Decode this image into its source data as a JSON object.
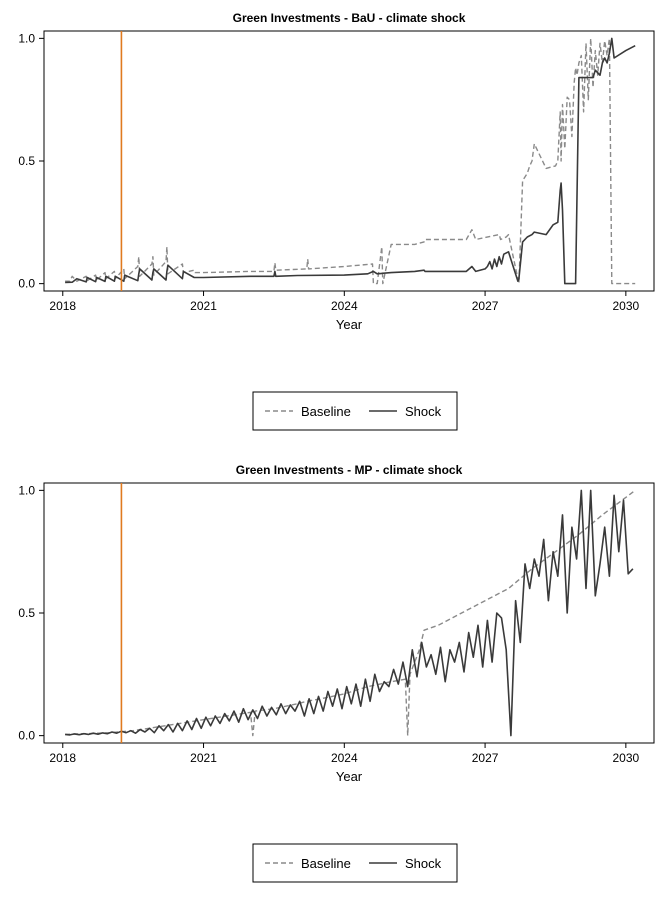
{
  "colors": {
    "baseline": "#8a8a8a",
    "shock": "#3a3a3a",
    "shock_marker": "#e07a1f"
  },
  "chart_data": [
    {
      "type": "line",
      "title": "Green Investments - BaU - climate shock",
      "xlabel": "Year",
      "ylabel": "",
      "xlim": [
        2017.6,
        2030.6
      ],
      "ylim": [
        -0.03,
        1.03
      ],
      "xticks": [
        2018,
        2021,
        2024,
        2027,
        2030
      ],
      "xtick_labels": [
        "2018",
        "2021",
        "2024",
        "2027",
        "2030"
      ],
      "yticks": [
        0.0,
        0.5,
        1.0
      ],
      "ytick_labels": [
        "0.0",
        "0.5",
        "1.0"
      ],
      "grid": false,
      "vline_x": 2019.25,
      "legend": {
        "placement": "bottom",
        "entries": [
          "Baseline",
          "Shock"
        ]
      },
      "series": [
        {
          "name": "Baseline",
          "style": "dashed",
          "x": [
            2018.05,
            2018.15,
            2018.2,
            2018.3,
            2018.5,
            2018.52,
            2018.7,
            2018.72,
            2018.9,
            2018.92,
            2019.1,
            2019.12,
            2019.3,
            2019.32,
            2019.6,
            2019.62,
            2019.64,
            2019.9,
            2019.92,
            2019.94,
            2020.2,
            2020.22,
            2020.24,
            2020.55,
            2020.57,
            2020.8,
            2020.82,
            2021.0,
            2022.0,
            2022.5,
            2022.52,
            2022.54,
            2023.2,
            2023.22,
            2023.24,
            2024.0,
            2024.6,
            2024.62,
            2024.7,
            2024.8,
            2024.82,
            2025.0,
            2025.5,
            2025.7,
            2025.72,
            2026.6,
            2026.72,
            2026.8,
            2027.3,
            2027.33,
            2027.45,
            2027.5,
            2027.72,
            2027.8,
            2027.9,
            2027.95,
            2028.0,
            2028.05,
            2028.3,
            2028.5,
            2028.55,
            2028.6,
            2028.62,
            2028.65,
            2028.7,
            2028.75,
            2028.8,
            2028.85,
            2028.9,
            2028.93,
            2028.96,
            2029.0,
            2029.05,
            2029.1,
            2029.15,
            2029.2,
            2029.25,
            2029.3,
            2029.35,
            2029.4,
            2029.45,
            2029.5,
            2029.55,
            2029.6,
            2029.65,
            2029.7,
            2029.75,
            2029.8,
            2030.2
          ],
          "y": [
            0.01,
            0.01,
            0.03,
            0.01,
            0.03,
            0.012,
            0.035,
            0.015,
            0.045,
            0.02,
            0.05,
            0.02,
            0.06,
            0.02,
            0.07,
            0.11,
            0.03,
            0.08,
            0.11,
            0.035,
            0.09,
            0.15,
            0.04,
            0.08,
            0.045,
            0.055,
            0.045,
            0.045,
            0.05,
            0.05,
            0.085,
            0.055,
            0.06,
            0.1,
            0.06,
            0.07,
            0.08,
            0.0,
            0.0,
            0.15,
            0.0,
            0.16,
            0.16,
            0.17,
            0.18,
            0.18,
            0.22,
            0.18,
            0.2,
            0.18,
            0.19,
            0.2,
            0.0,
            0.42,
            0.45,
            0.48,
            0.5,
            0.57,
            0.47,
            0.48,
            0.5,
            0.7,
            0.5,
            0.73,
            0.55,
            0.76,
            0.75,
            0.6,
            0.82,
            0.88,
            0.85,
            0.9,
            0.93,
            0.7,
            0.98,
            0.75,
            1.0,
            0.8,
            0.95,
            0.85,
            0.98,
            0.9,
            0.99,
            0.93,
            1.0,
            0.0,
            0.0,
            0.0,
            0.0
          ]
        },
        {
          "name": "Shock",
          "style": "solid",
          "x": [
            2018.05,
            2018.2,
            2018.3,
            2018.5,
            2018.52,
            2018.7,
            2018.72,
            2018.9,
            2018.92,
            2019.1,
            2019.12,
            2019.3,
            2019.32,
            2019.6,
            2019.62,
            2019.64,
            2019.9,
            2019.92,
            2019.94,
            2020.2,
            2020.22,
            2020.24,
            2020.55,
            2020.57,
            2020.8,
            2021.0,
            2022.0,
            2022.5,
            2022.52,
            2022.54,
            2023.0,
            2024.0,
            2024.5,
            2024.62,
            2024.7,
            2025.0,
            2025.5,
            2025.7,
            2025.72,
            2026.0,
            2026.6,
            2026.72,
            2026.8,
            2027.0,
            2027.05,
            2027.1,
            2027.15,
            2027.2,
            2027.25,
            2027.3,
            2027.35,
            2027.4,
            2027.5,
            2027.7,
            2027.72,
            2027.8,
            2027.9,
            2028.0,
            2028.05,
            2028.3,
            2028.45,
            2028.55,
            2028.6,
            2028.62,
            2028.65,
            2028.7,
            2028.9,
            2028.93,
            2029.0,
            2029.3,
            2029.35,
            2029.45,
            2029.5,
            2029.55,
            2029.6,
            2029.65,
            2029.7,
            2029.75,
            2030.0,
            2030.2
          ],
          "y": [
            0.005,
            0.006,
            0.02,
            0.007,
            0.025,
            0.008,
            0.025,
            0.009,
            0.03,
            0.01,
            0.03,
            0.01,
            0.035,
            0.012,
            0.04,
            0.06,
            0.015,
            0.045,
            0.06,
            0.015,
            0.05,
            0.075,
            0.02,
            0.05,
            0.025,
            0.025,
            0.03,
            0.03,
            0.05,
            0.03,
            0.033,
            0.035,
            0.04,
            0.05,
            0.04,
            0.045,
            0.05,
            0.055,
            0.05,
            0.05,
            0.05,
            0.07,
            0.05,
            0.06,
            0.07,
            0.09,
            0.06,
            0.1,
            0.07,
            0.11,
            0.08,
            0.12,
            0.13,
            0.01,
            0.02,
            0.17,
            0.19,
            0.2,
            0.21,
            0.2,
            0.24,
            0.25,
            0.38,
            0.41,
            0.3,
            0.0,
            0.0,
            0.0,
            0.84,
            0.84,
            0.87,
            0.85,
            0.9,
            0.92,
            0.9,
            0.94,
            1.0,
            0.92,
            0.95,
            0.97
          ]
        }
      ]
    },
    {
      "type": "line",
      "title": "Green Investments - MP - climate shock",
      "xlabel": "Year",
      "ylabel": "",
      "xlim": [
        2017.6,
        2030.6
      ],
      "ylim": [
        -0.03,
        1.03
      ],
      "xticks": [
        2018,
        2021,
        2024,
        2027,
        2030
      ],
      "xtick_labels": [
        "2018",
        "2021",
        "2024",
        "2027",
        "2030"
      ],
      "yticks": [
        0.0,
        0.5,
        1.0
      ],
      "ytick_labels": [
        "0.0",
        "0.5",
        "1.0"
      ],
      "grid": false,
      "vline_x": 2019.25,
      "legend": {
        "placement": "bottom",
        "entries": [
          "Baseline",
          "Shock"
        ]
      },
      "series": [
        {
          "name": "Baseline",
          "style": "dashed",
          "x": [
            2018.05,
            2018.5,
            2019.0,
            2019.5,
            2020.0,
            2020.5,
            2021.0,
            2021.5,
            2022.0,
            2022.05,
            2022.1,
            2022.5,
            2023.0,
            2023.2,
            2023.5,
            2024.0,
            2024.5,
            2025.0,
            2025.3,
            2025.35,
            2025.4,
            2025.6,
            2025.7,
            2026.0,
            2026.5,
            2027.0,
            2027.5,
            2028.0,
            2028.5,
            2029.0,
            2029.5,
            2030.2
          ],
          "y": [
            0.005,
            0.008,
            0.012,
            0.02,
            0.035,
            0.05,
            0.065,
            0.08,
            0.095,
            0.0,
            0.1,
            0.11,
            0.13,
            0.14,
            0.15,
            0.17,
            0.2,
            0.22,
            0.23,
            0.0,
            0.25,
            0.35,
            0.43,
            0.45,
            0.5,
            0.55,
            0.6,
            0.68,
            0.75,
            0.82,
            0.9,
            1.0
          ]
        },
        {
          "name": "Shock",
          "style": "solid",
          "x": [
            2018.05,
            2018.15,
            2018.25,
            2018.35,
            2018.45,
            2018.55,
            2018.65,
            2018.75,
            2018.85,
            2018.95,
            2019.05,
            2019.15,
            2019.25,
            2019.35,
            2019.45,
            2019.55,
            2019.65,
            2019.75,
            2019.85,
            2019.95,
            2020.05,
            2020.15,
            2020.25,
            2020.35,
            2020.45,
            2020.55,
            2020.65,
            2020.75,
            2020.85,
            2020.95,
            2021.05,
            2021.15,
            2021.25,
            2021.35,
            2021.45,
            2021.55,
            2021.65,
            2021.75,
            2021.85,
            2021.95,
            2022.05,
            2022.15,
            2022.25,
            2022.35,
            2022.45,
            2022.55,
            2022.65,
            2022.75,
            2022.85,
            2022.95,
            2023.05,
            2023.15,
            2023.25,
            2023.35,
            2023.45,
            2023.55,
            2023.65,
            2023.75,
            2023.85,
            2023.95,
            2024.05,
            2024.15,
            2024.25,
            2024.35,
            2024.45,
            2024.55,
            2024.65,
            2024.75,
            2024.85,
            2024.95,
            2025.05,
            2025.15,
            2025.25,
            2025.35,
            2025.45,
            2025.55,
            2025.65,
            2025.75,
            2025.85,
            2025.95,
            2026.05,
            2026.15,
            2026.25,
            2026.35,
            2026.45,
            2026.55,
            2026.65,
            2026.75,
            2026.85,
            2026.95,
            2027.05,
            2027.15,
            2027.25,
            2027.35,
            2027.45,
            2027.55,
            2027.65,
            2027.75,
            2027.85,
            2027.95,
            2028.05,
            2028.15,
            2028.25,
            2028.35,
            2028.45,
            2028.55,
            2028.65,
            2028.75,
            2028.85,
            2028.95,
            2029.05,
            2029.15,
            2029.25,
            2029.35,
            2029.45,
            2029.55,
            2029.65,
            2029.75,
            2029.85,
            2029.95,
            2030.05,
            2030.15
          ],
          "y": [
            0.005,
            0.003,
            0.007,
            0.004,
            0.008,
            0.005,
            0.01,
            0.006,
            0.011,
            0.008,
            0.015,
            0.01,
            0.018,
            0.012,
            0.02,
            0.01,
            0.025,
            0.015,
            0.03,
            0.012,
            0.04,
            0.02,
            0.045,
            0.015,
            0.05,
            0.02,
            0.06,
            0.025,
            0.07,
            0.03,
            0.075,
            0.04,
            0.08,
            0.05,
            0.09,
            0.06,
            0.1,
            0.055,
            0.11,
            0.065,
            0.105,
            0.07,
            0.12,
            0.08,
            0.115,
            0.085,
            0.13,
            0.09,
            0.125,
            0.1,
            0.14,
            0.08,
            0.15,
            0.09,
            0.16,
            0.1,
            0.18,
            0.12,
            0.19,
            0.11,
            0.2,
            0.13,
            0.21,
            0.12,
            0.23,
            0.14,
            0.25,
            0.18,
            0.22,
            0.2,
            0.27,
            0.21,
            0.3,
            0.2,
            0.35,
            0.24,
            0.38,
            0.28,
            0.33,
            0.25,
            0.36,
            0.22,
            0.35,
            0.3,
            0.38,
            0.26,
            0.42,
            0.32,
            0.45,
            0.28,
            0.47,
            0.3,
            0.5,
            0.48,
            0.35,
            0.0,
            0.55,
            0.38,
            0.7,
            0.6,
            0.72,
            0.65,
            0.8,
            0.55,
            0.75,
            0.65,
            0.9,
            0.5,
            0.85,
            0.72,
            1.0,
            0.6,
            1.0,
            0.57,
            0.7,
            0.85,
            0.65,
            0.98,
            0.75,
            0.96,
            0.66,
            0.68
          ]
        }
      ]
    }
  ]
}
